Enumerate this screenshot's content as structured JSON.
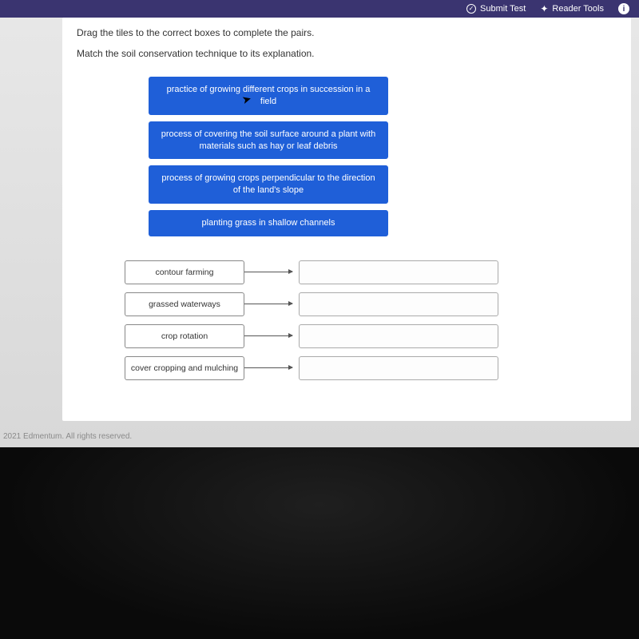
{
  "topbar": {
    "submit": "Submit Test",
    "reader": "Reader Tools"
  },
  "instructions": {
    "line1": "Drag the tiles to the correct boxes to complete the pairs.",
    "line2": "Match the soil conservation technique to its explanation."
  },
  "tiles": [
    "practice of growing different crops in succession in a field",
    "process of covering the soil surface around a plant with materials such as hay or leaf debris",
    "process of growing crops perpendicular to the direction of the land's slope",
    "planting grass in shallow channels"
  ],
  "terms": [
    "contour farming",
    "grassed waterways",
    "crop rotation",
    "cover cropping and mulching"
  ],
  "footer": "2021 Edmentum. All rights reserved.",
  "colors": {
    "tile_bg": "#1f5fd8",
    "topbar_bg": "#3a3470"
  }
}
